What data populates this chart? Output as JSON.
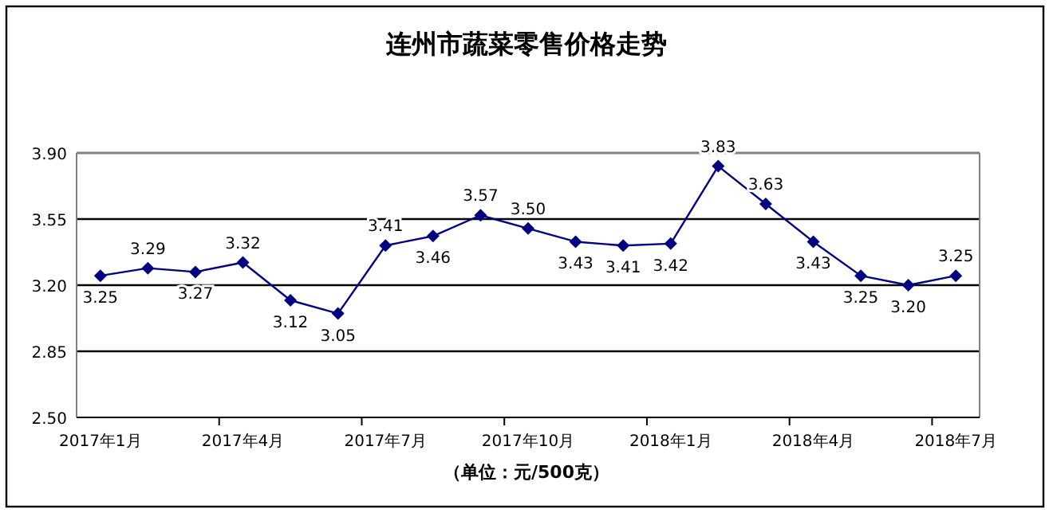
{
  "chart_data": {
    "type": "line",
    "title": "连州市蔬菜零售价格走势",
    "xlabel": "（单位：元/500克）",
    "categories": [
      "2017年1月",
      null,
      null,
      "2017年4月",
      null,
      null,
      "2017年7月",
      null,
      null,
      "2017年10月",
      null,
      null,
      "2018年1月",
      null,
      null,
      "2018年4月",
      null,
      null,
      "2018年7月"
    ],
    "series": [
      {
        "color": "#000080",
        "values": [
          3.25,
          3.29,
          3.27,
          3.32,
          3.12,
          3.05,
          3.41,
          3.46,
          3.57,
          3.5,
          3.43,
          3.41,
          3.42,
          3.83,
          3.63,
          3.43,
          3.25,
          3.2,
          3.25
        ],
        "value_labels": [
          "3.25",
          "3.29",
          "3.27",
          "3.32",
          "3.12",
          "3.05",
          "3.41",
          "3.46",
          "3.57",
          "3.50",
          "3.43",
          "3.41",
          "3.42",
          "3.83",
          "3.63",
          "3.43",
          "3.25",
          "3.20",
          "3.25"
        ]
      }
    ],
    "ylim": [
      2.5,
      3.9
    ],
    "yticks": [
      {
        "value": 2.5,
        "label": "2.50"
      },
      {
        "value": 2.85,
        "label": "2.85"
      },
      {
        "value": 3.2,
        "label": "3.20"
      },
      {
        "value": 3.55,
        "label": "3.55"
      },
      {
        "value": 3.9,
        "label": "3.90"
      }
    ],
    "grid": "y",
    "marker": "diamond",
    "line_style": "solid"
  }
}
